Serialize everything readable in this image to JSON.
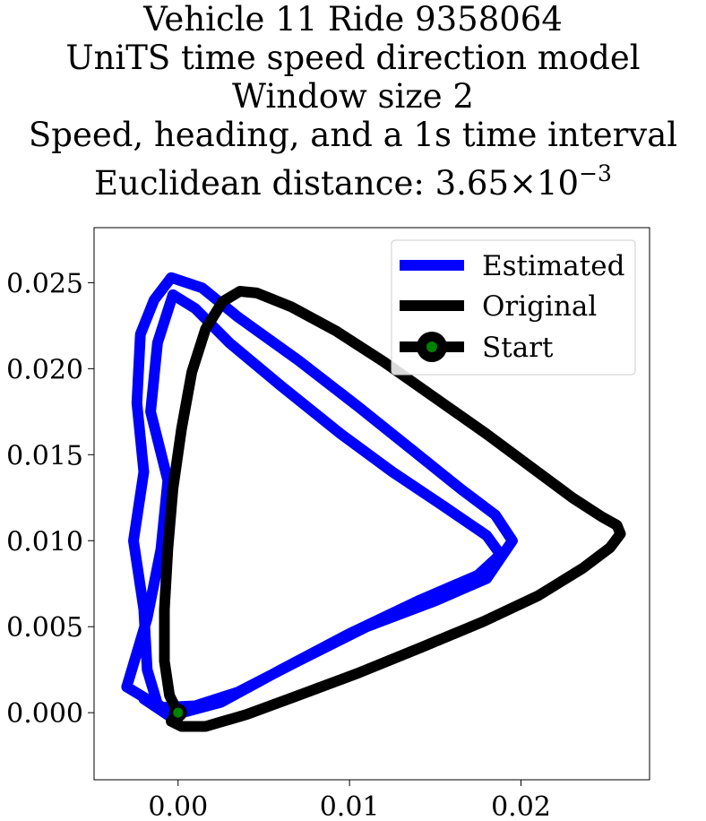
{
  "title_lines": [
    "Vehicle 11 Ride 9358064",
    "UniTS time speed direction model",
    "Window size 2",
    "Speed, heading, and a 1s time interval"
  ],
  "title_distance": {
    "label": "Euclidean distance: ",
    "mantissa": "3.65",
    "times": "×",
    "base": "10",
    "exponent": "−3"
  },
  "colors": {
    "estimated": "#0000ff",
    "original": "#000000",
    "start_marker_fill": "#008000",
    "start_marker_edge": "#000000"
  },
  "chart_data": {
    "type": "line",
    "title": "Vehicle 11 Ride 9358064 / UniTS time speed direction model / Window size 2 / Speed, heading, and a 1s time interval / Euclidean distance: 3.65×10^−3",
    "xlabel": "",
    "ylabel": "",
    "xlim": [
      -0.0049,
      0.0275
    ],
    "ylim": [
      -0.0039,
      0.0282
    ],
    "xticks": [
      0.0,
      0.01,
      0.02
    ],
    "xtick_labels": [
      "0.00",
      "0.01",
      "0.02"
    ],
    "yticks": [
      0.0,
      0.005,
      0.01,
      0.015,
      0.02,
      0.025
    ],
    "ytick_labels": [
      "0.000",
      "0.005",
      "0.010",
      "0.015",
      "0.020",
      "0.025"
    ],
    "grid": false,
    "legend_position": "upper right",
    "series": [
      {
        "name": "Estimated",
        "color": "#0000ff",
        "x": [
          0.0,
          -0.0012,
          -0.0018,
          -0.002,
          -0.0026,
          -0.002,
          -0.0024,
          -0.0022,
          -0.0014,
          -0.0004,
          0.0014,
          0.0035,
          0.007,
          0.0105,
          0.014,
          0.0165,
          0.0185,
          0.0195,
          0.018,
          0.015,
          0.011,
          0.007,
          0.0035,
          0.001,
          -0.001,
          -0.003,
          -0.0018,
          -0.001,
          -0.0006,
          -0.0016,
          -0.0012,
          -0.0003,
          0.001,
          0.003,
          0.006,
          0.0095,
          0.0125,
          0.0155,
          0.018,
          0.0188,
          0.0175,
          0.014,
          0.01,
          0.006,
          0.0025,
          -0.0005,
          -0.002,
          -0.0002
        ],
        "y": [
          -0.0003,
          0.0005,
          0.0025,
          0.006,
          0.01,
          0.014,
          0.018,
          0.022,
          0.024,
          0.0253,
          0.0247,
          0.023,
          0.0205,
          0.0178,
          0.015,
          0.013,
          0.0115,
          0.01,
          0.0078,
          0.0065,
          0.005,
          0.003,
          0.0012,
          0.0004,
          0.0003,
          0.0015,
          0.0055,
          0.0095,
          0.0135,
          0.0175,
          0.0215,
          0.0243,
          0.0235,
          0.0215,
          0.019,
          0.0162,
          0.014,
          0.012,
          0.0103,
          0.0092,
          0.008,
          0.0065,
          0.0046,
          0.0025,
          0.0006,
          -0.0002,
          0.0008,
          0.0
        ]
      },
      {
        "name": "Original",
        "color": "#000000",
        "x": [
          0.0,
          -0.0005,
          -0.0008,
          -0.0008,
          -0.0006,
          -0.0003,
          0.0002,
          0.0008,
          0.0016,
          0.0026,
          0.0036,
          0.0046,
          0.0066,
          0.0092,
          0.012,
          0.015,
          0.018,
          0.0207,
          0.023,
          0.0247,
          0.0256,
          0.0258,
          0.0252,
          0.0236,
          0.021,
          0.0178,
          0.0142,
          0.0105,
          0.007,
          0.004,
          0.0016,
          0.0002,
          -0.0004,
          -0.0002,
          0.0
        ],
        "y": [
          0.0,
          0.001,
          0.003,
          0.006,
          0.0095,
          0.013,
          0.0165,
          0.0198,
          0.0223,
          0.0239,
          0.0245,
          0.0244,
          0.0236,
          0.0222,
          0.0204,
          0.0183,
          0.0162,
          0.0142,
          0.0125,
          0.0114,
          0.0109,
          0.0104,
          0.0096,
          0.0084,
          0.0068,
          0.0053,
          0.0038,
          0.0023,
          0.001,
          -0.0001,
          -0.0008,
          -0.0008,
          -0.0005,
          -0.0002,
          0.0
        ]
      }
    ],
    "start": {
      "name": "Start",
      "x": 0.0,
      "y": 0.0
    }
  }
}
